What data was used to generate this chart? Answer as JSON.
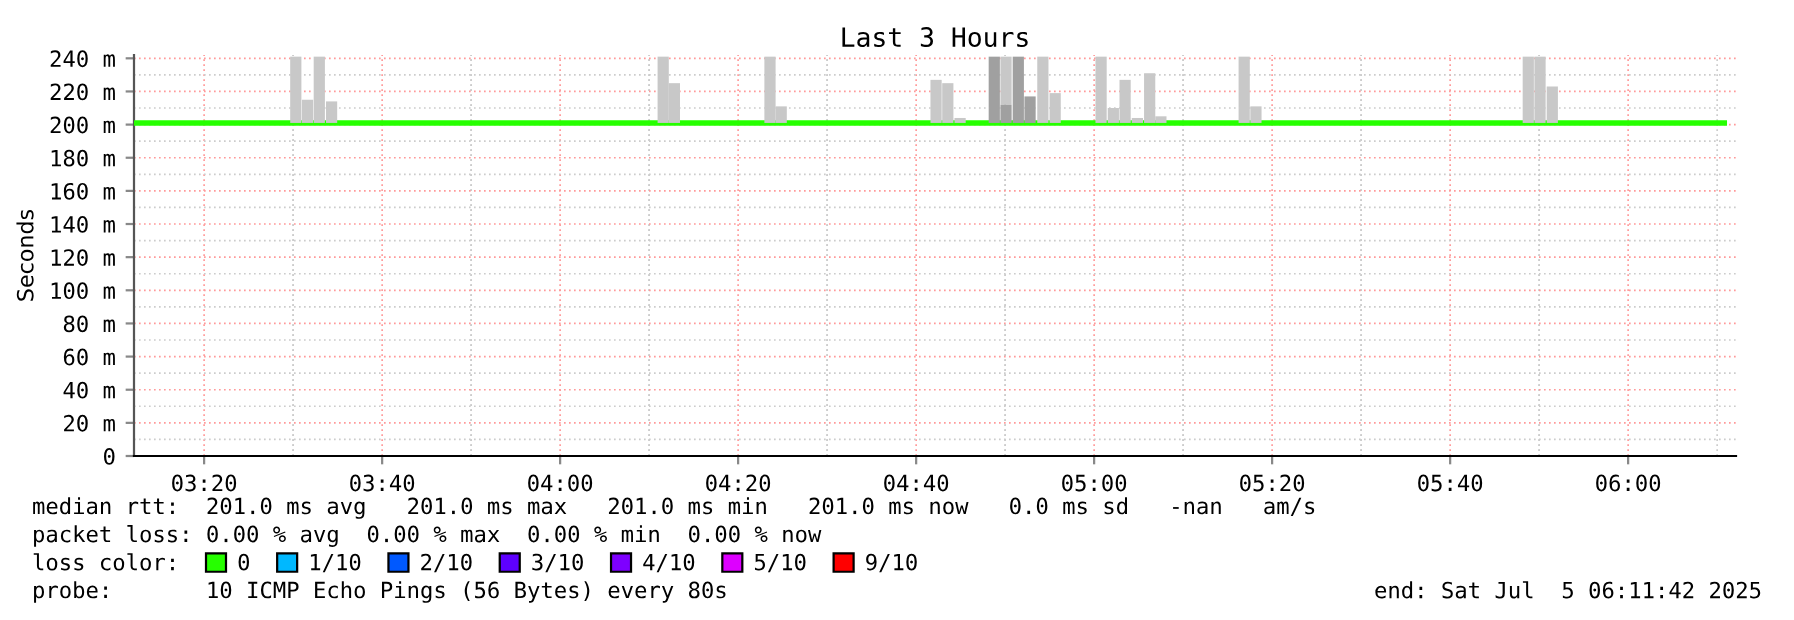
{
  "chart_data": {
    "type": "line",
    "title": "Last 3 Hours",
    "ylabel": "Seconds",
    "xlim": [
      3.202,
      6.202
    ],
    "ylim": [
      0,
      242
    ],
    "xticks": [
      {
        "value": 3.3333,
        "label": "03:20"
      },
      {
        "value": 3.6667,
        "label": "03:40"
      },
      {
        "value": 4.0,
        "label": "04:00"
      },
      {
        "value": 4.3333,
        "label": "04:20"
      },
      {
        "value": 4.6667,
        "label": "04:40"
      },
      {
        "value": 5.0,
        "label": "05:00"
      },
      {
        "value": 5.3333,
        "label": "05:20"
      },
      {
        "value": 5.6667,
        "label": "05:40"
      },
      {
        "value": 6.0,
        "label": "06:00"
      }
    ],
    "yticks": [
      0,
      {
        "value": 20,
        "label": "20 m"
      },
      {
        "value": 40,
        "label": "40 m"
      },
      {
        "value": 60,
        "label": "60 m"
      },
      {
        "value": 80,
        "label": "80 m"
      },
      {
        "value": 100,
        "label": "100 m"
      },
      {
        "value": 120,
        "label": "120 m"
      },
      {
        "value": 140,
        "label": "140 m"
      },
      {
        "value": 160,
        "label": "160 m"
      },
      {
        "value": 180,
        "label": "180 m"
      },
      {
        "value": 200,
        "label": "200 m"
      },
      {
        "value": 220,
        "label": "220 m"
      },
      {
        "value": 240,
        "label": "240 m"
      }
    ],
    "grid": true,
    "legend": "bottom",
    "legend_title": "loss color:",
    "series": [
      {
        "type": "bar",
        "color": "#c8c8c8",
        "x": [
          3.505,
          3.527,
          3.549,
          3.572,
          4.193,
          4.214,
          4.393,
          4.414,
          4.704,
          4.726,
          4.749,
          4.835,
          4.904,
          4.927,
          5.013,
          5.036,
          5.058,
          5.081,
          5.104,
          5.125,
          5.281,
          5.303,
          5.813,
          5.835,
          5.858
        ],
        "base": [
          201,
          201,
          201,
          201,
          201,
          201,
          201,
          201,
          201,
          201,
          201,
          212,
          201,
          201,
          201,
          201,
          201,
          201,
          201,
          201,
          201,
          201,
          201,
          201,
          201
        ],
        "values": [
          40,
          14,
          40,
          13,
          40,
          24,
          40,
          10,
          26,
          24,
          3,
          29,
          40,
          18,
          40,
          9,
          26,
          3,
          30,
          4,
          40,
          10,
          40,
          40,
          22
        ]
      },
      {
        "type": "bar",
        "color": "#a0a0a0",
        "x": [
          4.813,
          4.835,
          4.858,
          4.88
        ],
        "base": [
          201,
          201,
          201,
          201
        ],
        "values": [
          40,
          11,
          40,
          16
        ]
      },
      {
        "name": "0",
        "color": "#26ff00",
        "x": [
          3.202,
          6.18
        ],
        "values": [
          201,
          201
        ]
      },
      {
        "name": "1/10",
        "color": "#00b8ff"
      },
      {
        "name": "2/10",
        "color": "#0059ff"
      },
      {
        "name": "3/10",
        "color": "#5e00ff"
      },
      {
        "name": "4/10",
        "color": "#7e00ff"
      },
      {
        "name": "5/10",
        "color": "#dd00ff"
      },
      {
        "name": "9/10",
        "color": "#ff0000"
      }
    ],
    "annotations": [
      "median rtt:  201.0 ms avg   201.0 ms max   201.0 ms min   201.0 ms now   0.0 ms sd   -nan   am/s",
      "packet loss: 0.00 % avg  0.00 % max  0.00 % min  0.00 % now",
      "probe:       10 ICMP Echo Pings (56 Bytes) every 80s",
      "end: Sat Jul  5 06:11:42 2025"
    ]
  }
}
